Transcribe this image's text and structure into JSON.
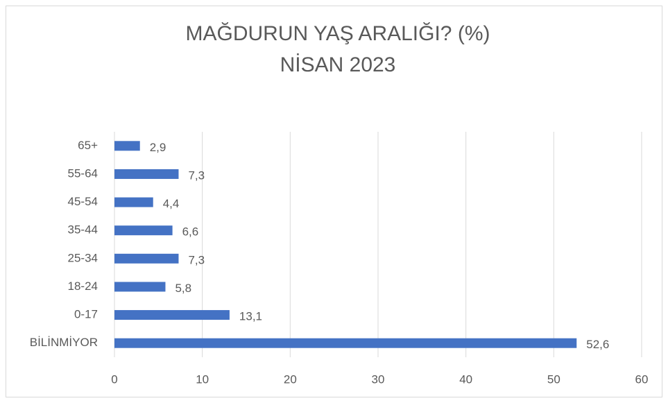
{
  "chart_data": {
    "type": "bar",
    "orientation": "horizontal",
    "title": [
      "MAĞDURUN YAŞ ARALIĞI? (%)",
      "NİSAN 2023"
    ],
    "categories": [
      "BİLİNMİYOR",
      "0-17",
      "18-24",
      "25-34",
      "35-44",
      "45-54",
      "55-64",
      "65+"
    ],
    "values": [
      52.6,
      13.1,
      5.8,
      7.3,
      6.6,
      4.4,
      7.3,
      2.9
    ],
    "value_labels": [
      "52,6",
      "13,1",
      "5,8",
      "7,3",
      "6,6",
      "4,4",
      "7,3",
      "2,9"
    ],
    "color": "#4472c4",
    "xlim": [
      0,
      60
    ],
    "xticks": [
      0,
      10,
      20,
      30,
      40,
      50,
      60
    ],
    "grid": true
  }
}
